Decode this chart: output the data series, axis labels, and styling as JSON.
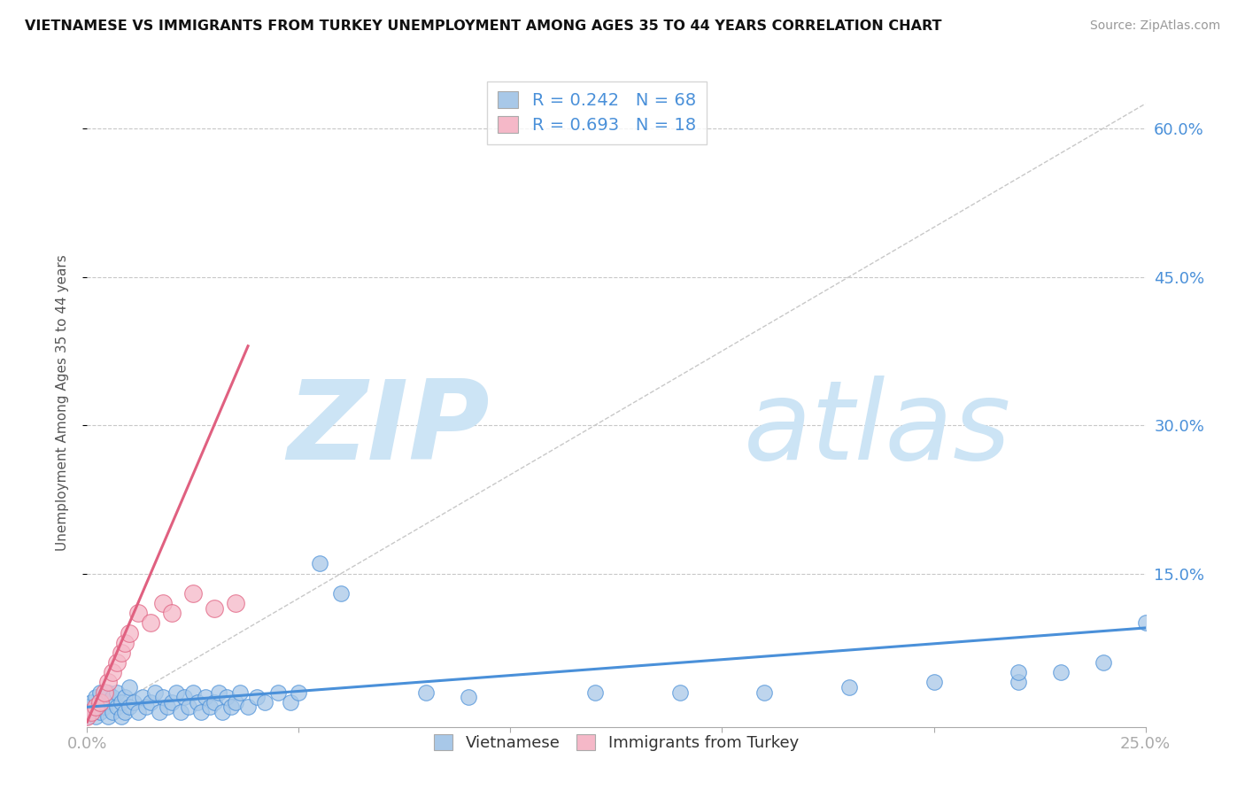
{
  "title": "VIETNAMESE VS IMMIGRANTS FROM TURKEY UNEMPLOYMENT AMONG AGES 35 TO 44 YEARS CORRELATION CHART",
  "source": "Source: ZipAtlas.com",
  "ylabel": "Unemployment Among Ages 35 to 44 years",
  "xlim": [
    0.0,
    0.25
  ],
  "ylim": [
    -0.005,
    0.65
  ],
  "ytick_vals_right": [
    0.15,
    0.3,
    0.45,
    0.6
  ],
  "ytick_labels_right": [
    "15.0%",
    "30.0%",
    "45.0%",
    "60.0%"
  ],
  "legend_entries": [
    {
      "r_label": "R = 0.242",
      "n_label": "N = 68",
      "color": "#a8c8e8"
    },
    {
      "r_label": "R = 0.693",
      "n_label": "N = 18",
      "color": "#f5b8c8"
    }
  ],
  "legend_labels_bottom": [
    "Vietnamese",
    "Immigrants from Turkey"
  ],
  "color_vietnamese": "#a8c8e8",
  "color_turkey": "#f5b8c8",
  "color_trendline_vietnamese": "#4a90d9",
  "color_trendline_turkey": "#e06080",
  "watermark_zip": "ZIP",
  "watermark_atlas": "atlas",
  "watermark_color": "#cce4f5",
  "background_color": "#ffffff",
  "grid_color": "#c8c8c8",
  "vietnamese_x": [
    0.0,
    0.0,
    0.001,
    0.001,
    0.002,
    0.002,
    0.003,
    0.003,
    0.004,
    0.004,
    0.005,
    0.005,
    0.006,
    0.006,
    0.007,
    0.007,
    0.008,
    0.008,
    0.009,
    0.009,
    0.01,
    0.01,
    0.011,
    0.012,
    0.013,
    0.014,
    0.015,
    0.016,
    0.017,
    0.018,
    0.019,
    0.02,
    0.021,
    0.022,
    0.023,
    0.024,
    0.025,
    0.026,
    0.027,
    0.028,
    0.029,
    0.03,
    0.031,
    0.032,
    0.033,
    0.034,
    0.035,
    0.036,
    0.038,
    0.04,
    0.042,
    0.045,
    0.048,
    0.05,
    0.055,
    0.06,
    0.08,
    0.09,
    0.12,
    0.14,
    0.16,
    0.18,
    0.2,
    0.22,
    0.22,
    0.23,
    0.24,
    0.25
  ],
  "vietnamese_y": [
    0.005,
    0.015,
    0.01,
    0.02,
    0.005,
    0.025,
    0.01,
    0.03,
    0.015,
    0.02,
    0.005,
    0.03,
    0.01,
    0.025,
    0.015,
    0.03,
    0.005,
    0.02,
    0.01,
    0.025,
    0.015,
    0.035,
    0.02,
    0.01,
    0.025,
    0.015,
    0.02,
    0.03,
    0.01,
    0.025,
    0.015,
    0.02,
    0.03,
    0.01,
    0.025,
    0.015,
    0.03,
    0.02,
    0.01,
    0.025,
    0.015,
    0.02,
    0.03,
    0.01,
    0.025,
    0.015,
    0.02,
    0.03,
    0.015,
    0.025,
    0.02,
    0.03,
    0.02,
    0.03,
    0.16,
    0.13,
    0.03,
    0.025,
    0.03,
    0.03,
    0.03,
    0.035,
    0.04,
    0.04,
    0.05,
    0.05,
    0.06,
    0.1
  ],
  "turkey_x": [
    0.0,
    0.001,
    0.002,
    0.003,
    0.004,
    0.005,
    0.006,
    0.007,
    0.008,
    0.009,
    0.01,
    0.012,
    0.015,
    0.018,
    0.02,
    0.025,
    0.03,
    0.035
  ],
  "turkey_y": [
    0.005,
    0.01,
    0.015,
    0.02,
    0.03,
    0.04,
    0.05,
    0.06,
    0.07,
    0.08,
    0.09,
    0.11,
    0.1,
    0.12,
    0.11,
    0.13,
    0.115,
    0.12
  ],
  "trendline_viet_x0": 0.0,
  "trendline_viet_x1": 0.25,
  "trendline_viet_y0": 0.015,
  "trendline_viet_y1": 0.095,
  "trendline_turkey_x0": 0.0,
  "trendline_turkey_x1": 0.038,
  "trendline_turkey_y0": 0.0,
  "trendline_turkey_y1": 0.38
}
